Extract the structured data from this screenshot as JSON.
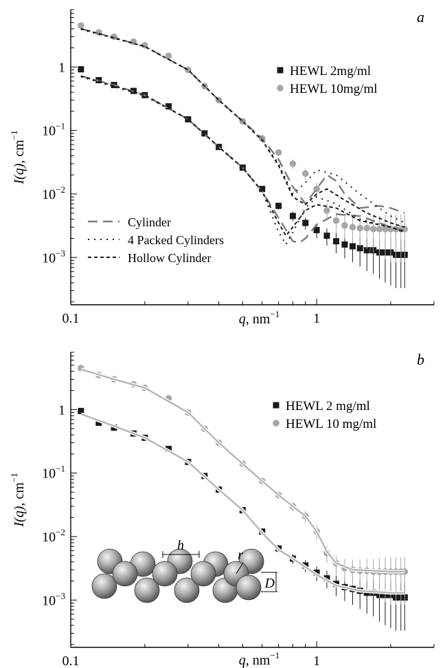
{
  "figure": {
    "panels": [
      "a",
      "b"
    ]
  },
  "chart_data": [
    {
      "panel_letter": "a",
      "type": "scatter",
      "x_scale": "log",
      "y_scale": "log",
      "xlim": [
        0.1,
        3.0
      ],
      "ylim": [
        0.00018,
        8
      ],
      "x_ticks": [
        {
          "value": 0.1,
          "label": "0.1"
        },
        {
          "value": 1,
          "label": "1"
        }
      ],
      "y_ticks": [
        {
          "value": 1,
          "base": "1",
          "exp": ""
        },
        {
          "value": 0.1,
          "base": "10",
          "exp": "−1"
        },
        {
          "value": 0.01,
          "base": "10",
          "exp": "−2"
        },
        {
          "value": 0.001,
          "base": "10",
          "exp": "−3"
        }
      ],
      "xlabel": {
        "var": "q",
        "unit": ", nm",
        "exp": "−1"
      },
      "ylabel": {
        "var": "I(q)",
        "unit": ", cm",
        "exp": "−1"
      },
      "legend_data_placement": "top-right",
      "legend_model_placement": "bottom-left",
      "series": [
        {
          "name": "HEWL 2mg/ml",
          "marker": "square",
          "color": "#1a1a1a",
          "errorbars": true,
          "x": [
            0.11,
            0.13,
            0.15,
            0.18,
            0.2,
            0.25,
            0.3,
            0.35,
            0.4,
            0.5,
            0.6,
            0.7,
            0.8,
            0.9,
            1.0,
            1.1,
            1.2,
            1.3,
            1.4,
            1.5,
            1.6,
            1.7,
            1.8,
            1.9,
            2.0,
            2.1,
            2.2,
            2.28
          ],
          "y": [
            0.92,
            0.62,
            0.52,
            0.42,
            0.36,
            0.24,
            0.15,
            0.09,
            0.055,
            0.026,
            0.012,
            0.0065,
            0.0045,
            0.0035,
            0.0027,
            0.0022,
            0.0018,
            0.0016,
            0.0015,
            0.0014,
            0.0013,
            0.0013,
            0.0012,
            0.0012,
            0.0012,
            0.0011,
            0.0011,
            0.0011
          ]
        },
        {
          "name": "HEWL 10mg/ml",
          "marker": "circle",
          "color": "#a6a6a6",
          "errorbars": true,
          "x": [
            0.11,
            0.13,
            0.15,
            0.18,
            0.2,
            0.25,
            0.3,
            0.35,
            0.4,
            0.5,
            0.6,
            0.7,
            0.8,
            0.9,
            1.0,
            1.1,
            1.2,
            1.3,
            1.4,
            1.5,
            1.6,
            1.7,
            1.8,
            1.9,
            2.0,
            2.1,
            2.2,
            2.28
          ],
          "y": [
            4.5,
            3.5,
            3.0,
            2.5,
            2.2,
            1.5,
            0.9,
            0.5,
            0.3,
            0.14,
            0.075,
            0.045,
            0.03,
            0.021,
            0.012,
            0.0055,
            0.0038,
            0.0032,
            0.003,
            0.0029,
            0.0029,
            0.0028,
            0.0028,
            0.0028,
            0.0028,
            0.0028,
            0.0028,
            0.0028
          ]
        },
        {
          "name": "Cylinder",
          "style": "dashed",
          "color": "#7a7a7a",
          "curves": [
            {
              "x": [
                0.11,
                0.15,
                0.2,
                0.3,
                0.4,
                0.5,
                0.6,
                0.7,
                0.8,
                0.85,
                0.9,
                1.0,
                1.2,
                1.5,
                1.8,
                2.0,
                2.28
              ],
              "y": [
                0.72,
                0.52,
                0.36,
                0.15,
                0.055,
                0.026,
                0.011,
                0.0042,
                0.0018,
                0.0017,
                0.002,
                0.0033,
                0.0048,
                0.0045,
                0.0035,
                0.003,
                0.0026
              ]
            },
            {
              "x": [
                0.11,
                0.15,
                0.2,
                0.3,
                0.4,
                0.5,
                0.6,
                0.7,
                0.8,
                0.9,
                1.0,
                1.1,
                1.2,
                1.3,
                1.5,
                1.8,
                2.0,
                2.28
              ],
              "y": [
                4.0,
                2.9,
                2.1,
                0.9,
                0.3,
                0.14,
                0.075,
                0.035,
                0.013,
                0.007,
                0.012,
                0.02,
                0.016,
                0.01,
                0.006,
                0.0065,
                0.006,
                0.005
              ]
            }
          ]
        },
        {
          "name": "4 Packed Cylinders",
          "style": "dotted",
          "color": "#1a1a1a",
          "curves": [
            {
              "x": [
                0.11,
                0.2,
                0.3,
                0.4,
                0.5,
                0.6,
                0.7,
                0.75,
                0.8,
                0.9,
                1.0,
                1.2,
                1.5,
                2.0,
                2.28
              ],
              "y": [
                0.7,
                0.35,
                0.15,
                0.055,
                0.026,
                0.011,
                0.0025,
                0.0016,
                0.0025,
                0.006,
                0.009,
                0.007,
                0.004,
                0.003,
                0.0026
              ]
            },
            {
              "x": [
                0.11,
                0.2,
                0.3,
                0.4,
                0.5,
                0.6,
                0.7,
                0.8,
                0.9,
                1.0,
                1.2,
                1.5,
                1.8,
                2.0,
                2.28
              ],
              "y": [
                3.9,
                2.1,
                0.9,
                0.3,
                0.14,
                0.07,
                0.03,
                0.01,
                0.015,
                0.024,
                0.02,
                0.01,
                0.006,
                0.0045,
                0.0035
              ]
            }
          ]
        },
        {
          "name": "Hollow Cylinder",
          "style": "hollow-dash",
          "color": "#1a1a1a",
          "curves": [
            {
              "x": [
                0.11,
                0.2,
                0.3,
                0.4,
                0.5,
                0.6,
                0.7,
                0.75,
                0.8,
                0.9,
                1.0,
                1.2,
                1.5,
                2.0,
                2.28
              ],
              "y": [
                0.72,
                0.36,
                0.15,
                0.055,
                0.026,
                0.011,
                0.0035,
                0.0022,
                0.003,
                0.0055,
                0.0068,
                0.006,
                0.0038,
                0.003,
                0.0025
              ]
            },
            {
              "x": [
                0.11,
                0.2,
                0.3,
                0.4,
                0.5,
                0.6,
                0.7,
                0.8,
                0.9,
                1.0,
                1.1,
                1.3,
                1.6,
                2.0,
                2.28
              ],
              "y": [
                4.0,
                2.1,
                0.9,
                0.3,
                0.14,
                0.07,
                0.028,
                0.009,
                0.0068,
                0.01,
                0.012,
                0.008,
                0.005,
                0.0035,
                0.003
              ]
            }
          ]
        }
      ]
    },
    {
      "panel_letter": "b",
      "type": "scatter",
      "x_scale": "log",
      "y_scale": "log",
      "xlim": [
        0.1,
        3.0
      ],
      "ylim": [
        0.00018,
        8
      ],
      "x_ticks": [
        {
          "value": 0.1,
          "label": "0.1"
        },
        {
          "value": 1,
          "label": "1"
        }
      ],
      "y_ticks": [
        {
          "value": 1,
          "base": "1",
          "exp": ""
        },
        {
          "value": 0.1,
          "base": "10",
          "exp": "−1"
        },
        {
          "value": 0.01,
          "base": "10",
          "exp": "−2"
        },
        {
          "value": 0.001,
          "base": "10",
          "exp": "−3"
        }
      ],
      "xlabel": {
        "var": "q",
        "unit": ", nm",
        "exp": "−1"
      },
      "ylabel": {
        "var": "I(q)",
        "unit": ", cm",
        "exp": "−1"
      },
      "legend_data_placement": "top-right",
      "inset_labels": [
        "h",
        "r",
        "D"
      ],
      "series": [
        {
          "name": "HEWL 2 mg/ml",
          "marker": "square",
          "color": "#1a1a1a",
          "errorbars": true,
          "x": [
            0.11,
            0.13,
            0.15,
            0.18,
            0.2,
            0.25,
            0.3,
            0.35,
            0.4,
            0.5,
            0.6,
            0.7,
            0.8,
            0.9,
            1.0,
            1.1,
            1.2,
            1.3,
            1.4,
            1.5,
            1.6,
            1.7,
            1.8,
            1.9,
            2.0,
            2.1,
            2.2,
            2.28
          ],
          "y": [
            0.95,
            0.62,
            0.52,
            0.42,
            0.36,
            0.24,
            0.15,
            0.09,
            0.055,
            0.026,
            0.012,
            0.0065,
            0.0045,
            0.0035,
            0.0027,
            0.0022,
            0.0018,
            0.0016,
            0.0015,
            0.0014,
            0.0013,
            0.0013,
            0.0012,
            0.0012,
            0.0012,
            0.0011,
            0.0011,
            0.0011
          ]
        },
        {
          "name": "HEWL 10 mg/ml",
          "marker": "circle",
          "color": "#a6a6a6",
          "errorbars": true,
          "x": [
            0.11,
            0.13,
            0.15,
            0.18,
            0.2,
            0.25,
            0.3,
            0.35,
            0.4,
            0.5,
            0.6,
            0.7,
            0.8,
            0.9,
            1.0,
            1.1,
            1.2,
            1.3,
            1.4,
            1.5,
            1.6,
            1.7,
            1.8,
            1.9,
            2.0,
            2.1,
            2.2,
            2.28
          ],
          "y": [
            4.5,
            3.5,
            3.0,
            2.5,
            2.2,
            1.5,
            0.9,
            0.5,
            0.3,
            0.14,
            0.075,
            0.045,
            0.03,
            0.021,
            0.012,
            0.0055,
            0.0038,
            0.0032,
            0.003,
            0.0029,
            0.0029,
            0.0028,
            0.0028,
            0.0028,
            0.0028,
            0.0028,
            0.0028,
            0.0028
          ]
        },
        {
          "style": "solid-fit",
          "color": "#1a1a1a",
          "curves": [
            {
              "x": [
                0.11,
                0.15,
                0.2,
                0.3,
                0.4,
                0.5,
                0.6,
                0.7,
                0.8,
                0.9,
                1.0,
                1.2,
                1.5,
                2.0,
                2.28
              ],
              "y": [
                0.85,
                0.55,
                0.36,
                0.15,
                0.055,
                0.026,
                0.0115,
                0.0062,
                0.0045,
                0.0033,
                0.0025,
                0.0017,
                0.0014,
                0.0013,
                0.0013
              ]
            },
            {
              "x": [
                0.11,
                0.15,
                0.2,
                0.3,
                0.4,
                0.5,
                0.6,
                0.7,
                0.8,
                0.9,
                1.0,
                1.1,
                1.2,
                1.4,
                1.7,
                2.0,
                2.28
              ],
              "y": [
                4.3,
                3.0,
                2.2,
                0.9,
                0.3,
                0.14,
                0.075,
                0.045,
                0.03,
                0.021,
                0.012,
                0.0058,
                0.0038,
                0.003,
                0.0029,
                0.0028,
                0.0028
              ]
            }
          ]
        }
      ]
    }
  ]
}
